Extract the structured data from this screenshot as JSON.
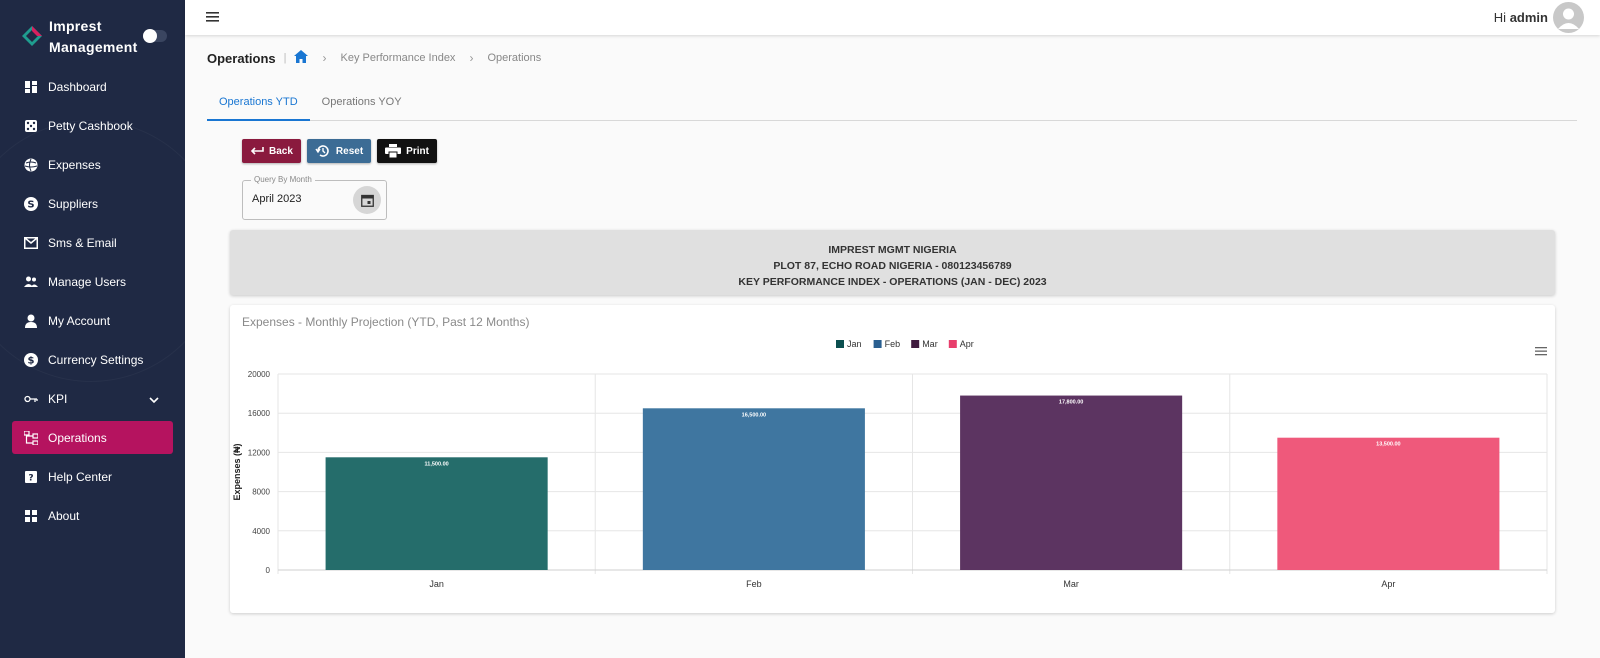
{
  "brand": {
    "line1": "Imprest",
    "line2": "Management"
  },
  "sidebar": {
    "items": [
      {
        "label": "Dashboard",
        "icon": "dashboard-icon"
      },
      {
        "label": "Petty Cashbook",
        "icon": "dice-icon"
      },
      {
        "label": "Expenses",
        "icon": "money-globe-icon"
      },
      {
        "label": "Suppliers",
        "icon": "dollar-circle-icon"
      },
      {
        "label": "Sms & Email",
        "icon": "mail-icon"
      },
      {
        "label": "Manage Users",
        "icon": "users-icon"
      },
      {
        "label": "My Account",
        "icon": "person-icon"
      },
      {
        "label": "Currency Settings",
        "icon": "currency-icon"
      },
      {
        "label": "KPI",
        "icon": "key-icon"
      },
      {
        "label": "Operations",
        "icon": "hierarchy-icon"
      },
      {
        "label": "Help Center",
        "icon": "help-icon"
      },
      {
        "label": "About",
        "icon": "grid-icon"
      }
    ]
  },
  "header": {
    "greeting": "Hi",
    "username": "admin"
  },
  "breadcrumb": {
    "title": "Operations",
    "items": [
      "Key Performance Index",
      "Operations"
    ]
  },
  "tabs": [
    "Operations YTD",
    "Operations YOY"
  ],
  "buttons": {
    "back": "Back",
    "reset": "Reset",
    "print": "Print"
  },
  "query": {
    "label": "Query By Month",
    "value": "April 2023"
  },
  "company": {
    "name": "IMPREST MGMT NIGERIA",
    "address": "PLOT 87, ECHO ROAD NIGERIA - 080123456789",
    "report": "KEY PERFORMANCE INDEX - OPERATIONS (JAN - DEC) 2023"
  },
  "colors": {
    "sidebar": "#1f2944",
    "active": "#b5135f",
    "accent": "#1976d2"
  },
  "chart_data": {
    "type": "bar",
    "title": "Expenses - Monthly Projection (YTD, Past 12 Months)",
    "ylabel": "Expenses (₦)",
    "xlabel": "",
    "categories": [
      "Jan",
      "Feb",
      "Mar",
      "Apr"
    ],
    "values": [
      11500,
      16500,
      17800,
      13500
    ],
    "data_labels": [
      "11,500.00",
      "16,500.00",
      "17,800.00",
      "13,500.00"
    ],
    "colors": [
      "#256d6b",
      "#3f76a0",
      "#5c3461",
      "#ef597b"
    ],
    "legend": [
      "Jan",
      "Feb",
      "Mar",
      "Apr"
    ],
    "legend_colors": [
      "#0b4f4f",
      "#2a5f90",
      "#3f1a3e",
      "#e83e6c"
    ],
    "legend_position": "top-center",
    "yticks": [
      "0",
      "4000",
      "8000",
      "12000",
      "16000",
      "20000"
    ],
    "ylim": [
      0,
      20000
    ],
    "grid": true
  }
}
